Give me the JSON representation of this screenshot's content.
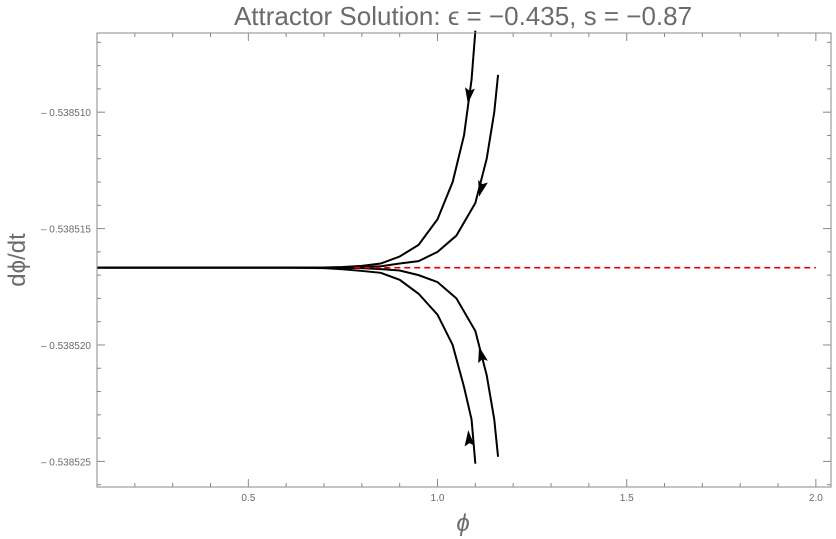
{
  "chart_data": {
    "type": "line",
    "title": "Attractor Solution: ϵ = −0.435, s = −0.87",
    "xlabel": "ϕ",
    "ylabel": "dϕ/dt",
    "xlim": [
      0.1,
      2.04
    ],
    "ylim": [
      -0.5385261,
      -0.5385066
    ],
    "grid": false,
    "x_ticks": [
      0.5,
      1.0,
      1.5,
      2.0
    ],
    "x_tick_labels": [
      "0.5",
      "1.0",
      "1.5",
      "2.0"
    ],
    "y_ticks": [
      -0.53851,
      -0.538515,
      -0.53852,
      -0.538525
    ],
    "y_tick_labels": [
      "– 0.538510",
      "– 0.538515",
      "– 0.538520",
      "– 0.538525"
    ],
    "series": [
      {
        "color": "#000000",
        "style": "solid",
        "arrows": [
          [
            1.083,
            -0.5385093
          ]
        ],
        "points": [
          [
            1.1,
            -0.5385065
          ],
          [
            1.09,
            -0.5385086
          ],
          [
            1.07,
            -0.538511
          ],
          [
            1.04,
            -0.538513
          ],
          [
            1.0,
            -0.5385146
          ],
          [
            0.95,
            -0.5385157
          ],
          [
            0.9,
            -0.5385162
          ],
          [
            0.85,
            -0.5385165
          ],
          [
            0.8,
            -0.5385166
          ],
          [
            0.75,
            -0.53851665
          ],
          [
            0.7,
            -0.53851667
          ],
          [
            0.6,
            -0.53851668
          ],
          [
            0.4,
            -0.53851668
          ],
          [
            0.1,
            -0.53851668
          ]
        ]
      },
      {
        "color": "#000000",
        "style": "solid",
        "arrows": [
          [
            1.115,
            -0.5385133
          ]
        ],
        "points": [
          [
            1.16,
            -0.5385084
          ],
          [
            1.15,
            -0.53851
          ],
          [
            1.13,
            -0.538512
          ],
          [
            1.1,
            -0.5385139
          ],
          [
            1.05,
            -0.5385153
          ],
          [
            1.0,
            -0.538516
          ],
          [
            0.95,
            -0.5385164
          ],
          [
            0.9,
            -0.5385165
          ],
          [
            0.85,
            -0.53851662
          ],
          [
            0.8,
            -0.53851666
          ],
          [
            0.7,
            -0.53851668
          ],
          [
            0.4,
            -0.53851668
          ],
          [
            0.1,
            -0.53851668
          ]
        ]
      },
      {
        "color": "#000000",
        "style": "solid",
        "arrows": [
          [
            1.115,
            -0.5385204
          ]
        ],
        "points": [
          [
            1.16,
            -0.5385248
          ],
          [
            1.15,
            -0.5385232
          ],
          [
            1.13,
            -0.5385213
          ],
          [
            1.1,
            -0.5385194
          ],
          [
            1.05,
            -0.538518
          ],
          [
            1.0,
            -0.5385173
          ],
          [
            0.95,
            -0.538517
          ],
          [
            0.9,
            -0.5385168
          ],
          [
            0.85,
            -0.53851674
          ],
          [
            0.8,
            -0.5385167
          ],
          [
            0.7,
            -0.53851668
          ],
          [
            0.4,
            -0.53851668
          ],
          [
            0.1,
            -0.53851668
          ]
        ]
      },
      {
        "color": "#000000",
        "style": "solid",
        "arrows": [
          [
            1.083,
            -0.538524
          ]
        ],
        "points": [
          [
            1.1,
            -0.5385251
          ],
          [
            1.09,
            -0.5385232
          ],
          [
            1.07,
            -0.5385218
          ],
          [
            1.04,
            -0.53852
          ],
          [
            1.0,
            -0.5385187
          ],
          [
            0.95,
            -0.5385178
          ],
          [
            0.9,
            -0.5385172
          ],
          [
            0.85,
            -0.5385169
          ],
          [
            0.8,
            -0.53851682
          ],
          [
            0.75,
            -0.53851675
          ],
          [
            0.7,
            -0.5385167
          ],
          [
            0.6,
            -0.53851668
          ],
          [
            0.4,
            -0.53851668
          ],
          [
            0.1,
            -0.53851668
          ]
        ]
      },
      {
        "color": "#dd0000",
        "style": "dashed",
        "arrows": [],
        "points": [
          [
            0.78,
            -0.53851668
          ],
          [
            2.0,
            -0.53851668
          ]
        ]
      }
    ]
  }
}
